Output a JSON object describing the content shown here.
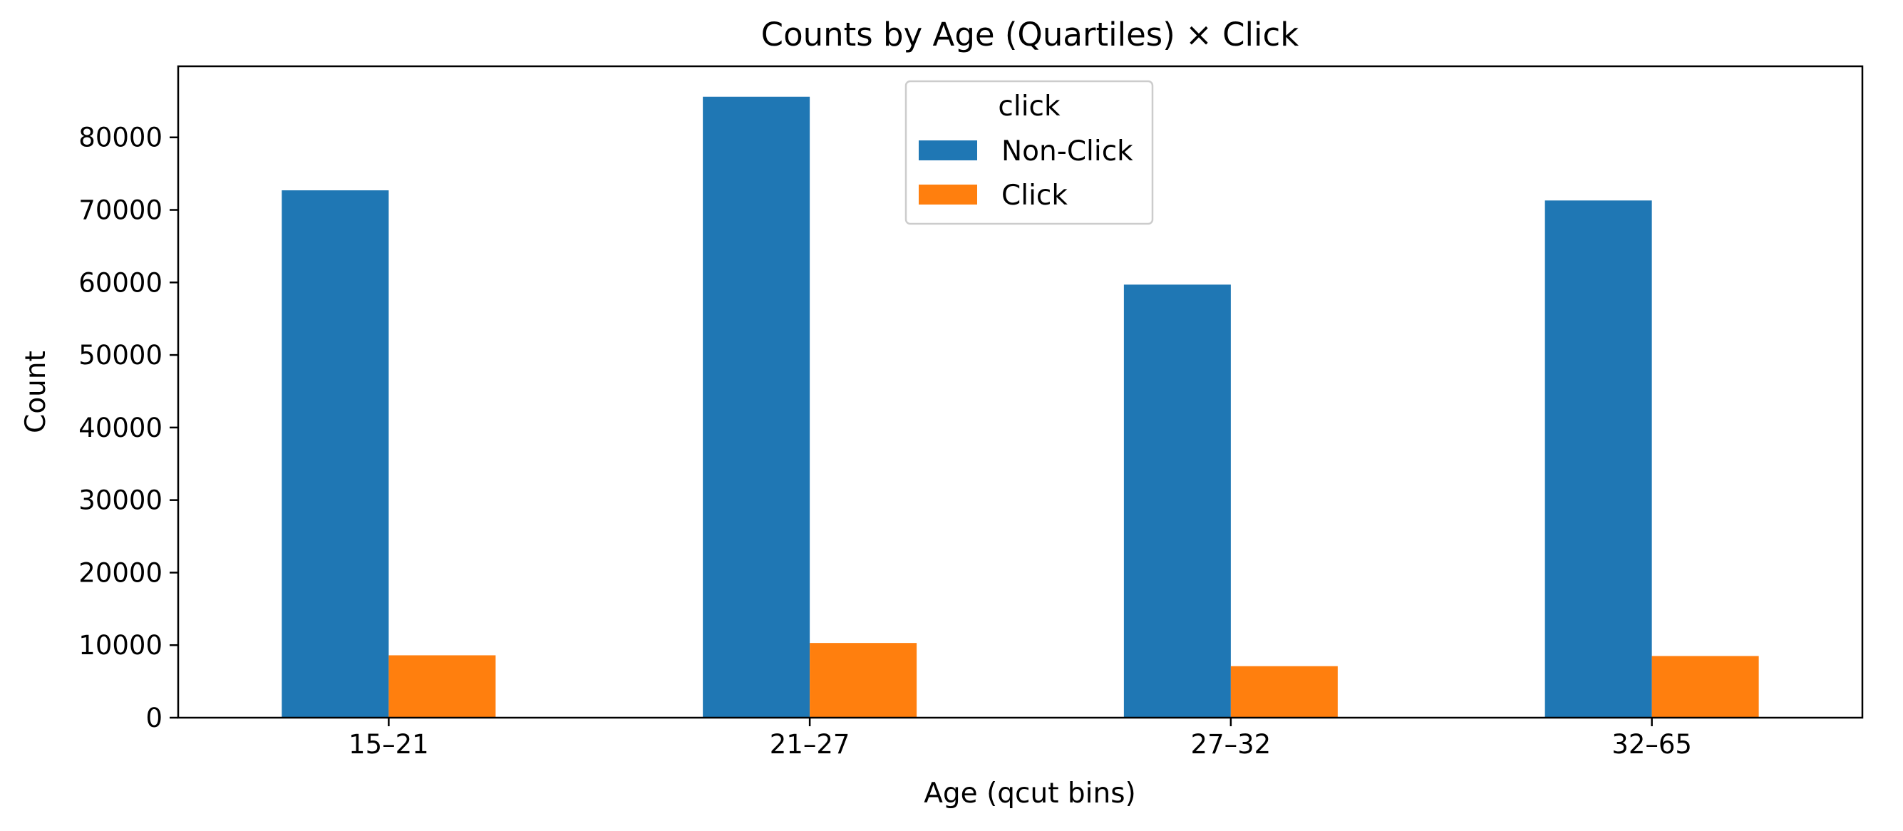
{
  "chart_data": {
    "type": "bar",
    "title": "Counts by Age (Quartiles) × Click",
    "xlabel": "Age (qcut bins)",
    "ylabel": "Count",
    "categories": [
      "15–21",
      "21–27",
      "27–32",
      "32–65"
    ],
    "series": [
      {
        "name": "Non-Click",
        "color": "#1f77b4",
        "values": [
          72700,
          85600,
          59700,
          71300
        ]
      },
      {
        "name": "Click",
        "color": "#ff7f0e",
        "values": [
          8600,
          10300,
          7100,
          8500
        ]
      }
    ],
    "ylim": [
      0,
      89800
    ],
    "yticks": [
      0,
      10000,
      20000,
      30000,
      40000,
      50000,
      60000,
      70000,
      80000
    ],
    "grid": false,
    "legend": {
      "title": "click",
      "placement": "top-center"
    }
  }
}
